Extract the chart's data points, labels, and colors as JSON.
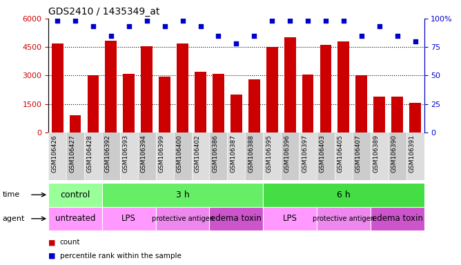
{
  "title": "GDS2410 / 1435349_at",
  "samples": [
    "GSM106426",
    "GSM106427",
    "GSM106428",
    "GSM106392",
    "GSM106393",
    "GSM106394",
    "GSM106399",
    "GSM106400",
    "GSM106402",
    "GSM106386",
    "GSM106387",
    "GSM106388",
    "GSM106395",
    "GSM106396",
    "GSM106397",
    "GSM106403",
    "GSM106405",
    "GSM106407",
    "GSM106389",
    "GSM106390",
    "GSM106391"
  ],
  "counts": [
    4700,
    900,
    3000,
    4850,
    3100,
    4550,
    2950,
    4700,
    3200,
    3100,
    2000,
    2800,
    4500,
    5000,
    3050,
    4600,
    4800,
    3000,
    1900,
    1900,
    1550
  ],
  "percentile_ranks": [
    98,
    98,
    93,
    85,
    93,
    98,
    93,
    98,
    93,
    85,
    78,
    85,
    98,
    98,
    98,
    98,
    98,
    85,
    93,
    85,
    80
  ],
  "ylim_left": [
    0,
    6000
  ],
  "ylim_right": [
    0,
    100
  ],
  "yticks_left": [
    0,
    1500,
    3000,
    4500,
    6000
  ],
  "ytick_labels_left": [
    "0",
    "1500",
    "3000",
    "4500",
    "6000"
  ],
  "yticks_right": [
    0,
    25,
    50,
    75,
    100
  ],
  "ytick_labels_right": [
    "0",
    "25",
    "50",
    "75",
    "100%"
  ],
  "bar_color": "#cc0000",
  "dot_color": "#0000cc",
  "time_row": [
    {
      "label": "control",
      "start": 0,
      "end": 3,
      "color": "#99ff99"
    },
    {
      "label": "3 h",
      "start": 3,
      "end": 12,
      "color": "#66ee66"
    },
    {
      "label": "6 h",
      "start": 12,
      "end": 21,
      "color": "#44dd44"
    }
  ],
  "agent_row": [
    {
      "label": "untreated",
      "start": 0,
      "end": 3,
      "color": "#ff99ff"
    },
    {
      "label": "LPS",
      "start": 3,
      "end": 6,
      "color": "#ff99ff"
    },
    {
      "label": "protective antigen",
      "start": 6,
      "end": 9,
      "color": "#ee88ee"
    },
    {
      "label": "edema toxin",
      "start": 9,
      "end": 12,
      "color": "#cc55cc"
    },
    {
      "label": "LPS",
      "start": 12,
      "end": 15,
      "color": "#ff99ff"
    },
    {
      "label": "protective antigen",
      "start": 15,
      "end": 18,
      "color": "#ee88ee"
    },
    {
      "label": "edema toxin",
      "start": 18,
      "end": 21,
      "color": "#cc55cc"
    }
  ],
  "time_label": "time",
  "agent_label": "agent",
  "bar_color_legend": "#cc0000",
  "dot_color_legend": "#0000cc",
  "grid_dotted_color": "#888888",
  "col_bg_light": "#dddddd",
  "col_bg_dark": "#cccccc"
}
